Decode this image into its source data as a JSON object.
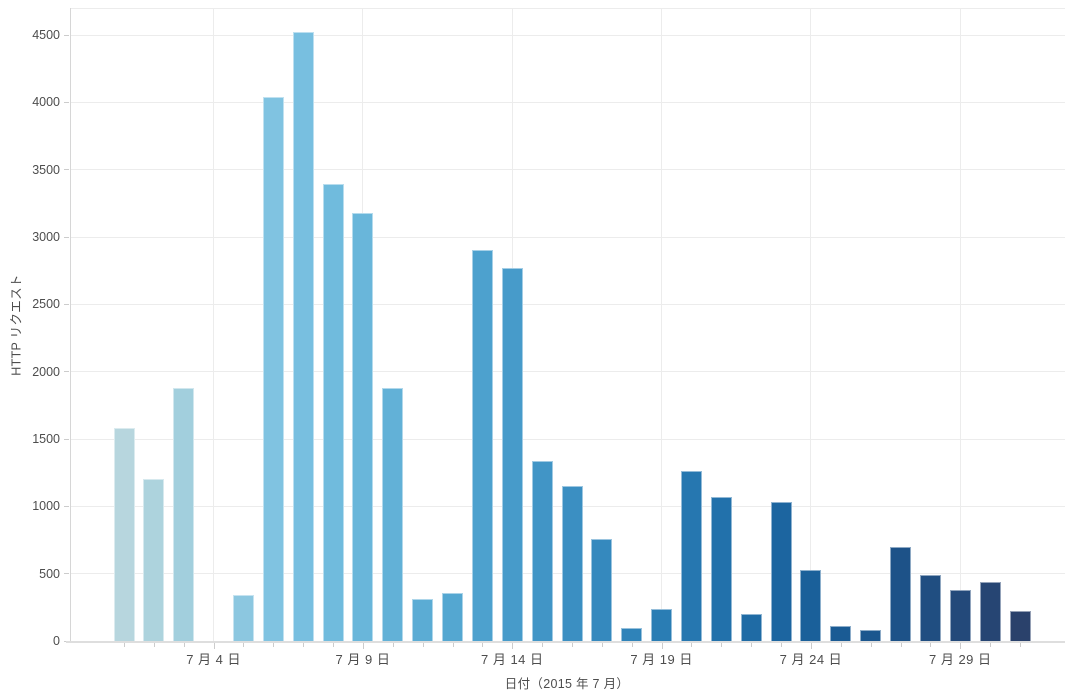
{
  "chart_data": {
    "type": "bar",
    "title": "",
    "xlabel": "日付（2015 年 7 月）",
    "ylabel": "HTTP リクエスト",
    "x": [
      1,
      2,
      3,
      4,
      5,
      6,
      7,
      8,
      9,
      10,
      11,
      12,
      13,
      14,
      15,
      16,
      17,
      18,
      19,
      20,
      21,
      22,
      23,
      24,
      25,
      26,
      27,
      28,
      29,
      30,
      31
    ],
    "values": [
      1580,
      1200,
      1880,
      null,
      345,
      4040,
      4520,
      3390,
      3180,
      1880,
      310,
      355,
      2900,
      2770,
      1340,
      1150,
      760,
      100,
      240,
      1265,
      1070,
      200,
      1030,
      530,
      115,
      80,
      700,
      490,
      380,
      435,
      220
    ],
    "bar_colors": [
      "#b7d6de",
      "#add3dd",
      "#a2cfdd",
      "#97cbde",
      "#8cc7e0",
      "#80c3e1",
      "#78bfe0",
      "#70bbdd",
      "#69b6da",
      "#62b1d7",
      "#5bacd4",
      "#54a7d1",
      "#4da1ce",
      "#479bca",
      "#4195c6",
      "#3b8fc2",
      "#3589be",
      "#2f83b9",
      "#2a7db4",
      "#2677b0",
      "#2271ab",
      "#1f6ba5",
      "#1c65a0",
      "#1a609a",
      "#1a5b94",
      "#1b568e",
      "#1d5288",
      "#204e81",
      "#23497a",
      "#264573",
      "#2a416b"
    ],
    "xtick_days": [
      4,
      9,
      14,
      19,
      24,
      29
    ],
    "xtick_labels": [
      "7 月 4 日",
      "7 月 9 日",
      "7 月 14 日",
      "7 月 19 日",
      "7 月 24 日",
      "7 月 29 日"
    ],
    "yticks": [
      0,
      500,
      1000,
      1500,
      2000,
      2500,
      3000,
      3500,
      4000,
      4500
    ],
    "ylim": [
      0,
      4750
    ],
    "grid": true,
    "legend_position": "none",
    "colors": {
      "text": "#4d4d4d",
      "gridline": "#ececec",
      "axis_line": "#d9d9d9"
    }
  }
}
